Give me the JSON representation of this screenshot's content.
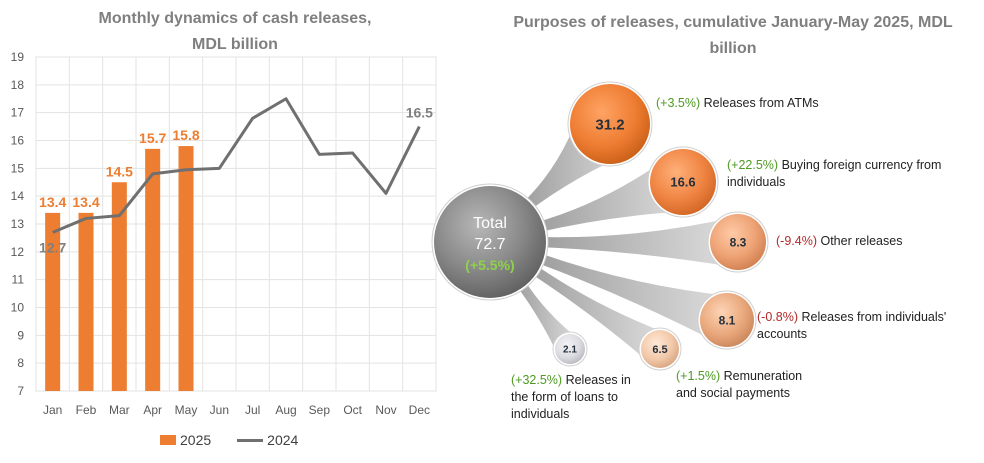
{
  "left_title_line1": "Monthly dynamics of cash releases,",
  "left_title_line2": "MDL billion",
  "right_title_line1": "Purposes of releases, cumulative January-May 2025, MDL",
  "right_title_line2": "billion",
  "colors": {
    "bar_2025": "#ed7d31",
    "line_2024": "#707070",
    "positive": "#4e9a22",
    "negative": "#b42828"
  },
  "chart_data": [
    {
      "type": "bar",
      "title": "Monthly dynamics of cash releases, MDL billion",
      "categories": [
        "Jan",
        "Feb",
        "Mar",
        "Apr",
        "May",
        "Jun",
        "Jul",
        "Aug",
        "Sep",
        "Oct",
        "Nov",
        "Dec"
      ],
      "series": [
        {
          "name": "2025",
          "type": "bar",
          "values": [
            13.4,
            13.4,
            14.5,
            15.7,
            15.8,
            null,
            null,
            null,
            null,
            null,
            null,
            null
          ]
        },
        {
          "name": "2024",
          "type": "line",
          "values": [
            12.7,
            13.2,
            13.3,
            14.8,
            14.95,
            15.0,
            16.8,
            17.5,
            15.5,
            15.55,
            14.1,
            16.5
          ]
        }
      ],
      "data_labels_2025": [
        "13.4",
        "13.4",
        "14.5",
        "15.7",
        "15.8"
      ],
      "data_labels_2024": {
        "first": "12.7",
        "last": "16.5"
      },
      "y_ticks": [
        "19",
        "18",
        "17",
        "16",
        "15",
        "14",
        "13",
        "12",
        "11",
        "10",
        "9",
        "8",
        "7"
      ],
      "ylim": [
        7,
        19
      ],
      "grid": true,
      "legend_placement": "bottom"
    },
    {
      "type": "bubble",
      "title": "Purposes of releases, cumulative January-May 2025, MDL billion",
      "total": {
        "label": "Total",
        "value": "72.7",
        "change": "(+5.5%)"
      },
      "items": [
        {
          "value": 31.2,
          "value_label": "31.2",
          "change": "(+3.5%)",
          "label": "Releases from ATMs"
        },
        {
          "value": 16.6,
          "value_label": "16.6",
          "change": "(+22.5%)",
          "label": "Buying foreign currency from individuals"
        },
        {
          "value": 8.3,
          "value_label": "8.3",
          "change": "(-9.4%)",
          "label": "Other releases"
        },
        {
          "value": 8.1,
          "value_label": "8.1",
          "change": "(-0.8%)",
          "label": "Releases from individuals' accounts"
        },
        {
          "value": 6.5,
          "value_label": "6.5",
          "change": "(+1.5%)",
          "label": "Remuneration and social payments"
        },
        {
          "value": 2.1,
          "value_label": "2.1",
          "change": "(+32.5%)",
          "label": "Releases in the form of loans to individuals"
        }
      ]
    }
  ],
  "legend": {
    "bar": "2025",
    "line": "2024"
  }
}
